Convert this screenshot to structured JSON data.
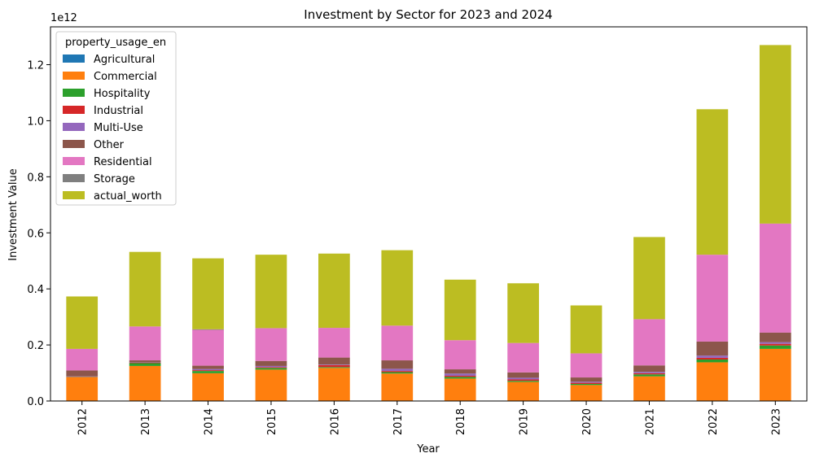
{
  "chart_data": {
    "type": "bar",
    "stacked": true,
    "title": "Investment by Sector for 2023 and 2024",
    "xlabel": "Year",
    "ylabel": "Investment Value",
    "y_offset_label": "1e12",
    "ylim": [
      0,
      1.335
    ],
    "y_ticks": [
      "0.0",
      "0.2",
      "0.4",
      "0.6",
      "0.8",
      "1.0",
      "1.2"
    ],
    "categories": [
      "2012",
      "2013",
      "2014",
      "2015",
      "2016",
      "2017",
      "2018",
      "2019",
      "2020",
      "2021",
      "2022",
      "2023"
    ],
    "legend_title": "property_usage_en",
    "legend_position": "top-left",
    "grid": false,
    "series": [
      {
        "name": "Agricultural",
        "color": "#1f77b4",
        "values": [
          0,
          0,
          0.001,
          0,
          0,
          0,
          0,
          0,
          0,
          0,
          0.001,
          0.001
        ]
      },
      {
        "name": "Commercial",
        "color": "#ff7f0e",
        "values": [
          0.085,
          0.125,
          0.098,
          0.112,
          0.118,
          0.098,
          0.08,
          0.068,
          0.057,
          0.088,
          0.137,
          0.185
        ]
      },
      {
        "name": "Hospitality",
        "color": "#2ca02c",
        "values": [
          0.001,
          0.01,
          0.008,
          0.006,
          0.003,
          0.005,
          0.006,
          0.004,
          0.004,
          0.007,
          0.01,
          0.012
        ]
      },
      {
        "name": "Industrial",
        "color": "#d62728",
        "values": [
          0.001,
          0.002,
          0.003,
          0.003,
          0.007,
          0.004,
          0.004,
          0.005,
          0.004,
          0.004,
          0.006,
          0.006
        ]
      },
      {
        "name": "Multi-Use",
        "color": "#9467bd",
        "values": [
          0.001,
          0.001,
          0.004,
          0.004,
          0.002,
          0.008,
          0.008,
          0.006,
          0.004,
          0.005,
          0.008,
          0.006
        ]
      },
      {
        "name": "Other",
        "color": "#8c564b",
        "values": [
          0.021,
          0.007,
          0.012,
          0.018,
          0.025,
          0.03,
          0.015,
          0.019,
          0.015,
          0.023,
          0.05,
          0.034
        ]
      },
      {
        "name": "Residential",
        "color": "#e377c2",
        "values": [
          0.077,
          0.121,
          0.128,
          0.117,
          0.106,
          0.124,
          0.104,
          0.105,
          0.086,
          0.165,
          0.31,
          0.389
        ]
      },
      {
        "name": "Storage",
        "color": "#7f7f7f",
        "values": [
          0,
          0,
          0.002,
          0,
          0,
          0,
          0,
          0,
          0,
          0,
          0,
          0
        ]
      },
      {
        "name": "actual_worth",
        "color": "#bcbd22",
        "values": [
          0.187,
          0.266,
          0.253,
          0.262,
          0.265,
          0.269,
          0.216,
          0.213,
          0.171,
          0.293,
          0.519,
          0.637
        ]
      }
    ]
  }
}
